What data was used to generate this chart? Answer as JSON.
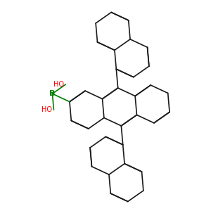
{
  "background_color": "#ffffff",
  "bond_color": "#1a1a1a",
  "boron_color": "#008000",
  "oxygen_color": "#ff0000",
  "bond_width": 1.2,
  "dbo": 0.018,
  "figsize": [
    3.0,
    3.0
  ],
  "dpi": 100,
  "xlim": [
    0,
    300
  ],
  "ylim": [
    0,
    300
  ]
}
